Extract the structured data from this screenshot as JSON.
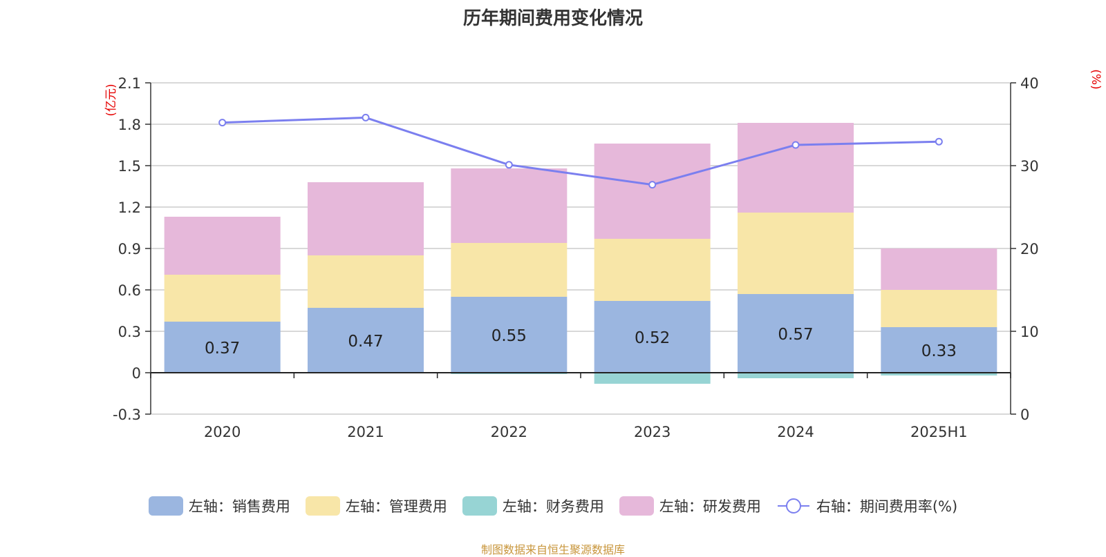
{
  "title": "历年期间费用变化情况",
  "source_note": "制图数据来自恒生聚源数据库",
  "colors": {
    "sales": "#9bb6e0",
    "admin": "#f8e6a8",
    "finance": "#97d4d4",
    "rnd": "#e6b8da",
    "rate_line": "#7b7fef"
  },
  "chart_data": {
    "type": "bar",
    "stacked": true,
    "categories": [
      "2020",
      "2021",
      "2022",
      "2023",
      "2024",
      "2025H1"
    ],
    "left_axis": {
      "unit": "(亿元)",
      "ylim": [
        -0.3,
        2.1
      ],
      "ticks": [
        "-0.3",
        "0",
        "0.3",
        "0.6",
        "0.9",
        "1.2",
        "1.5",
        "1.8",
        "2.1"
      ]
    },
    "right_axis": {
      "unit": "(%)",
      "ylim": [
        0,
        40
      ],
      "ticks": [
        "0",
        "10",
        "20",
        "30",
        "40"
      ]
    },
    "series": [
      {
        "name": "左轴：销售费用",
        "key": "sales",
        "axis": "left",
        "values": [
          0.37,
          0.47,
          0.55,
          0.52,
          0.57,
          0.33
        ],
        "labels": [
          "0.37",
          "0.47",
          "0.55",
          "0.52",
          "0.57",
          "0.33"
        ]
      },
      {
        "name": "左轴：管理费用",
        "key": "admin",
        "axis": "left",
        "values": [
          0.34,
          0.38,
          0.39,
          0.45,
          0.59,
          0.27
        ]
      },
      {
        "name": "左轴：财务费用",
        "key": "finance",
        "axis": "left",
        "values": [
          0.0,
          0.0,
          -0.01,
          -0.08,
          -0.04,
          -0.02
        ]
      },
      {
        "name": "左轴：研发费用",
        "key": "rnd",
        "axis": "left",
        "values": [
          0.42,
          0.53,
          0.54,
          0.69,
          0.65,
          0.3
        ]
      },
      {
        "name": "右轴：期间费用率(%)",
        "key": "rate_line",
        "axis": "right",
        "type": "line",
        "values": [
          35.2,
          35.8,
          30.1,
          27.7,
          32.5,
          32.9
        ]
      }
    ],
    "grid": true,
    "legend_position": "bottom"
  }
}
